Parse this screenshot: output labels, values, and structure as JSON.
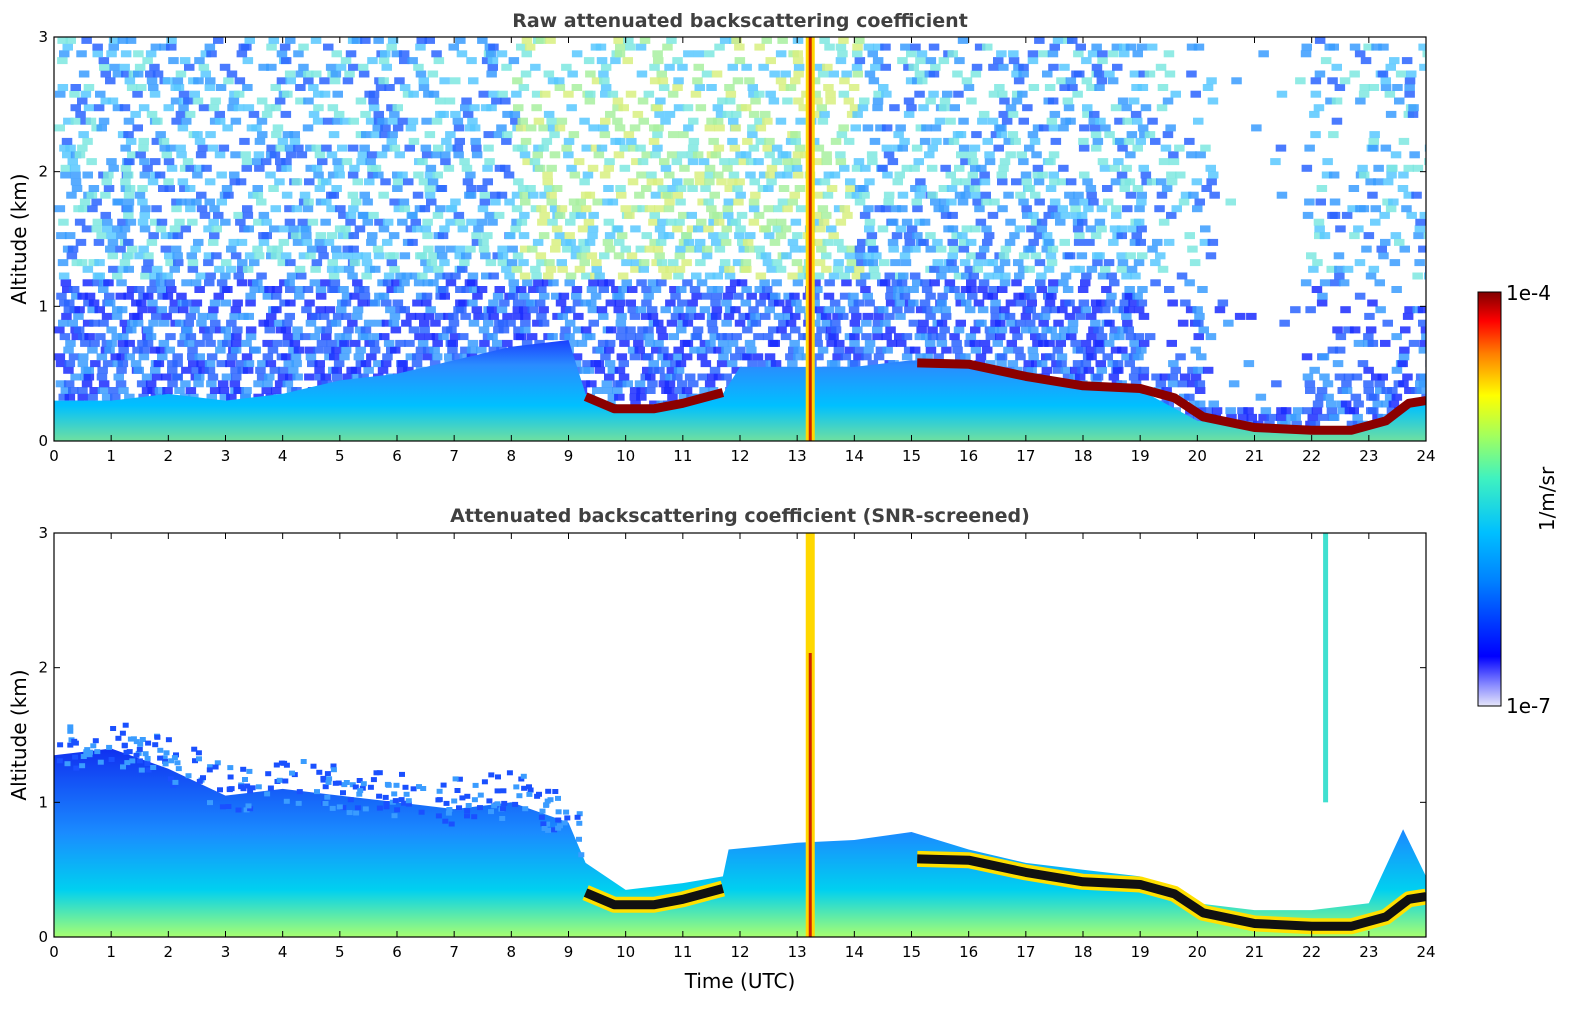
{
  "chart_data": [
    {
      "type": "heatmap",
      "title": "Raw attenuated backscattering coefficient",
      "xlabel": "",
      "ylabel": "Altitude (km)",
      "xlim": [
        0,
        24
      ],
      "ylim": [
        0,
        3
      ],
      "x_ticks": [
        "0",
        "1",
        "2",
        "3",
        "4",
        "5",
        "6",
        "7",
        "8",
        "9",
        "10",
        "11",
        "12",
        "13",
        "14",
        "15",
        "16",
        "17",
        "18",
        "19",
        "20",
        "21",
        "22",
        "23",
        "24"
      ],
      "y_ticks": [
        "0",
        "1",
        "2",
        "3"
      ],
      "screened": false,
      "boundary_layer_top_km": [
        [
          0,
          0.3
        ],
        [
          1,
          0.3
        ],
        [
          2,
          0.35
        ],
        [
          3,
          0.3
        ],
        [
          4,
          0.35
        ],
        [
          5,
          0.45
        ],
        [
          6,
          0.5
        ],
        [
          7,
          0.6
        ],
        [
          8,
          0.7
        ],
        [
          9,
          0.75
        ],
        [
          9.3,
          0.35
        ],
        [
          10,
          0.25
        ],
        [
          11,
          0.3
        ],
        [
          11.7,
          0.35
        ],
        [
          12,
          0.55
        ],
        [
          13,
          0.55
        ],
        [
          14,
          0.55
        ],
        [
          15,
          0.6
        ],
        [
          16,
          0.55
        ],
        [
          17,
          0.45
        ],
        [
          18,
          0.4
        ],
        [
          19,
          0.38
        ],
        [
          20,
          0.15
        ],
        [
          21,
          0.1
        ],
        [
          22,
          0.08
        ],
        [
          23,
          0.12
        ],
        [
          24,
          0.3
        ]
      ],
      "cloud_layer_km": [
        [
          9.3,
          0.33
        ],
        [
          9.8,
          0.24
        ],
        [
          10.5,
          0.24
        ],
        [
          11,
          0.28
        ],
        [
          11.7,
          0.36
        ],
        [
          15.1,
          0.58
        ],
        [
          16,
          0.57
        ],
        [
          17,
          0.48
        ],
        [
          18,
          0.41
        ],
        [
          19,
          0.39
        ],
        [
          19.6,
          0.32
        ],
        [
          20.1,
          0.18
        ],
        [
          21,
          0.1
        ],
        [
          22,
          0.08
        ],
        [
          22.7,
          0.08
        ],
        [
          23.3,
          0.15
        ],
        [
          23.7,
          0.28
        ],
        [
          24,
          0.3
        ]
      ]
    },
    {
      "type": "heatmap",
      "title": "Attenuated backscattering coefficient (SNR-screened)",
      "xlabel": "Time (UTC)",
      "ylabel": "Altitude (km)",
      "xlim": [
        0,
        24
      ],
      "ylim": [
        0,
        3
      ],
      "x_ticks": [
        "0",
        "1",
        "2",
        "3",
        "4",
        "5",
        "6",
        "7",
        "8",
        "9",
        "10",
        "11",
        "12",
        "13",
        "14",
        "15",
        "16",
        "17",
        "18",
        "19",
        "20",
        "21",
        "22",
        "23",
        "24"
      ],
      "y_ticks": [
        "0",
        "1",
        "2",
        "3"
      ],
      "screened": true,
      "signal_top_km": [
        [
          0,
          1.35
        ],
        [
          1,
          1.4
        ],
        [
          2,
          1.25
        ],
        [
          3,
          1.05
        ],
        [
          4,
          1.1
        ],
        [
          5,
          1.05
        ],
        [
          6,
          1.0
        ],
        [
          7,
          0.95
        ],
        [
          8,
          1.0
        ],
        [
          9,
          0.85
        ],
        [
          9.3,
          0.55
        ],
        [
          10,
          0.35
        ],
        [
          11,
          0.4
        ],
        [
          11.7,
          0.45
        ],
        [
          11.8,
          0.65
        ],
        [
          13,
          0.7
        ],
        [
          14,
          0.72
        ],
        [
          15,
          0.78
        ],
        [
          16,
          0.65
        ],
        [
          17,
          0.55
        ],
        [
          18,
          0.5
        ],
        [
          19,
          0.45
        ],
        [
          20,
          0.25
        ],
        [
          21,
          0.2
        ],
        [
          22,
          0.2
        ],
        [
          23,
          0.25
        ],
        [
          23.6,
          0.8
        ],
        [
          24,
          0.45
        ]
      ],
      "cloud_layer_km": [
        [
          9.3,
          0.33
        ],
        [
          9.8,
          0.24
        ],
        [
          10.5,
          0.24
        ],
        [
          11,
          0.28
        ],
        [
          11.7,
          0.36
        ],
        [
          15.1,
          0.58
        ],
        [
          16,
          0.57
        ],
        [
          17,
          0.48
        ],
        [
          18,
          0.41
        ],
        [
          19,
          0.39
        ],
        [
          19.6,
          0.32
        ],
        [
          20.1,
          0.18
        ],
        [
          21,
          0.1
        ],
        [
          22,
          0.08
        ],
        [
          22.7,
          0.08
        ],
        [
          23.3,
          0.15
        ],
        [
          23.7,
          0.28
        ],
        [
          24,
          0.3
        ]
      ]
    }
  ],
  "colorbar": {
    "max_label": "1e-4",
    "min_label": "1e-7",
    "unit_label": "1/m/sr",
    "colormap": "jet"
  }
}
